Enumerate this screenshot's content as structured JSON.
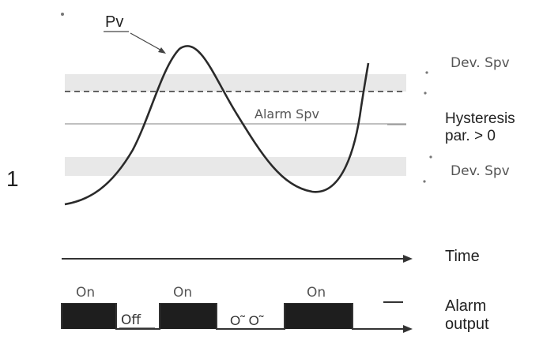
{
  "figure": {
    "number": "1",
    "labels": {
      "pv": "Pv",
      "dev_spv_upper": "Dev. Spv",
      "alarm_spv": "Alarm Spv",
      "hysteresis": [
        "Hysteresis",
        "par. > 0"
      ],
      "dev_spv_lower": "Dev. Spv",
      "time": "Time",
      "alarm_output": [
        "Alarm",
        "output"
      ]
    },
    "output_states": [
      "On",
      "Off",
      "On",
      "O˜ O˜",
      "On"
    ],
    "colors": {
      "band": "#e8e8e8",
      "curve": "#2a2a2a",
      "pulse": "#1e1e1e",
      "text": "#2b2b2b",
      "text_light": "#555555"
    }
  }
}
